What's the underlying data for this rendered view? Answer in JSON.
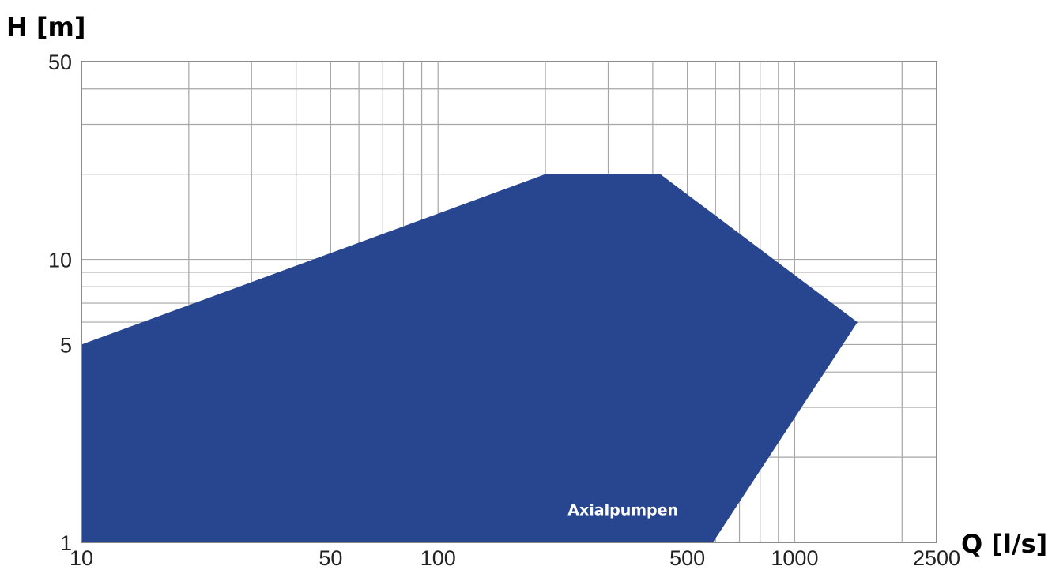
{
  "chart_data": {
    "type": "area",
    "title": "",
    "xlabel": "Q [l/s]",
    "ylabel": "H [m]",
    "x_scale": "log",
    "y_scale": "log",
    "xlim": [
      10,
      2500
    ],
    "ylim": [
      1,
      50
    ],
    "x_ticks": [
      10,
      50,
      100,
      500,
      1000,
      2500
    ],
    "y_ticks": [
      1,
      5,
      10,
      50
    ],
    "x_minor_grid": [
      20,
      30,
      40,
      60,
      70,
      80,
      90,
      200,
      300,
      400,
      600,
      700,
      800,
      900,
      2000
    ],
    "y_minor_grid": [
      2,
      3,
      4,
      6,
      7,
      8,
      9,
      20,
      30,
      40
    ],
    "grid": true,
    "series": [
      {
        "name": "Axialpumpen",
        "color": "#28468f",
        "polygon": [
          {
            "x": 10,
            "y": 1
          },
          {
            "x": 10,
            "y": 5
          },
          {
            "x": 200,
            "y": 20
          },
          {
            "x": 420,
            "y": 20
          },
          {
            "x": 1500,
            "y": 6
          },
          {
            "x": 590,
            "y": 1
          }
        ]
      }
    ],
    "annotations": [
      {
        "text": "Axialpumpen",
        "x": 330,
        "y": 1.25
      }
    ]
  }
}
